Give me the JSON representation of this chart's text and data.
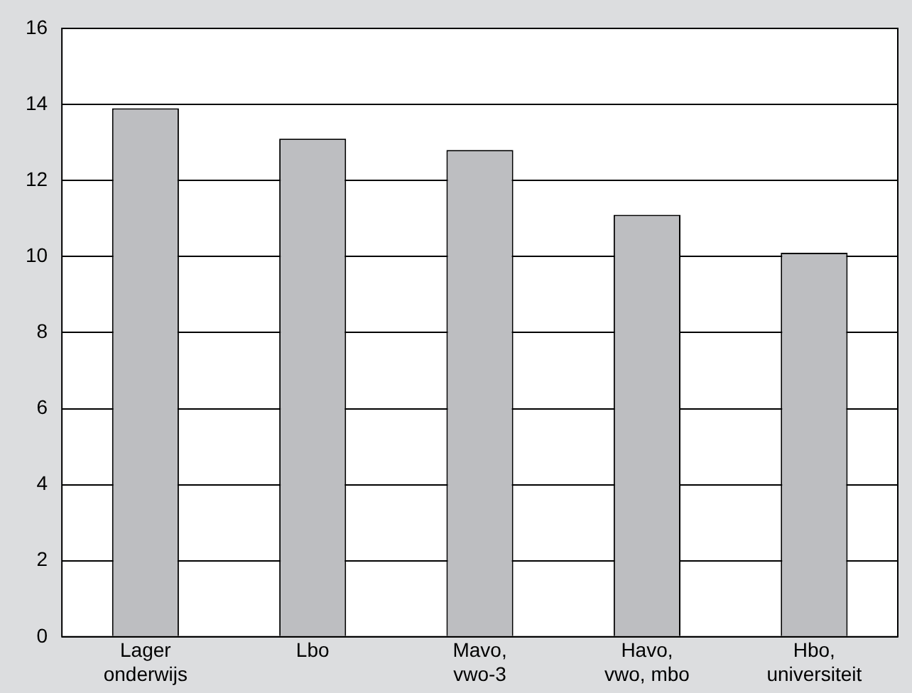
{
  "chart_data": {
    "type": "bar",
    "categories": [
      "Lager\nonderwijs",
      "Lbo",
      "Mavo,\nvwo-3",
      "Havo,\nvwo, mbo",
      "Hbo,\nuniversiteit"
    ],
    "values": [
      13.9,
      13.1,
      12.8,
      11.1,
      10.1
    ],
    "color": "#bdbec1",
    "ylim": [
      0,
      16
    ],
    "yticks": [
      0,
      2,
      4,
      6,
      8,
      10,
      12,
      14,
      16
    ],
    "grid": "y"
  }
}
